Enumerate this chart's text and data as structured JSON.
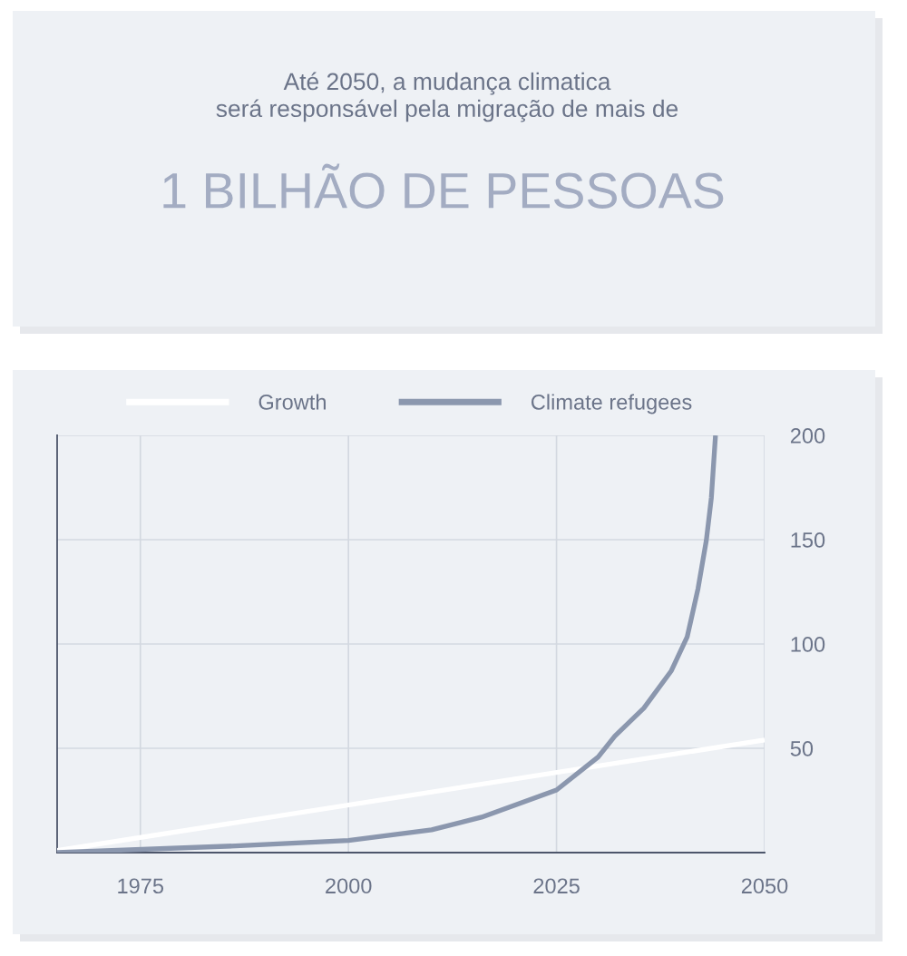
{
  "chart_data": {
    "type": "line",
    "title": "Até 2050, a mudança climatica\nserá responsável pela migração de mais de",
    "subtitle": "1 BILHÃO DE PESSOAS",
    "series": [
      {
        "name": "Growth",
        "color": "#ffffff",
        "x": [
          1965,
          2050
        ],
        "values": [
          1,
          54
        ]
      },
      {
        "name": "Climate refugees",
        "color": "#8b97ae",
        "x": [
          1965,
          1987,
          2000,
          2010,
          2016,
          2025,
          2030,
          2032,
          2035.5,
          2038.8,
          2040.7,
          2042,
          2043,
          2043.6,
          2044.1
        ],
        "values": [
          0,
          3.3,
          5.8,
          10.9,
          17,
          30,
          45.8,
          55.8,
          69.3,
          87.2,
          103.4,
          126.5,
          149.7,
          170,
          200
        ]
      }
    ],
    "xlim": [
      1965,
      2050
    ],
    "xticks": [
      1975,
      2000,
      2025,
      2050
    ],
    "ylim": [
      0,
      200
    ],
    "yticks": [
      50,
      100,
      150,
      200
    ],
    "grid": true,
    "legend": "top",
    "marker": "none",
    "line_style": "solid"
  }
}
